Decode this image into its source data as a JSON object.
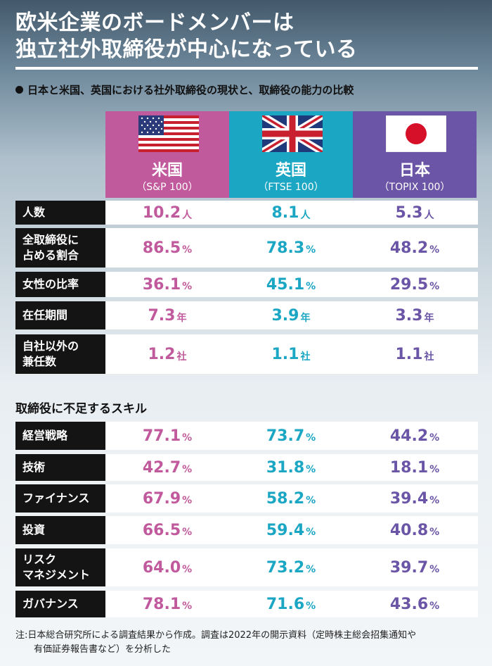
{
  "title": {
    "line1": "欧米企業のボードメンバーは",
    "line2": "独立社外取締役が中心になっている"
  },
  "subtitle": "日本と米国、英国における社外取締役の現状と、取締役の能力の比較",
  "columns": [
    {
      "name": "米国",
      "sub": "（S&P 100）",
      "flag": "us-flag-icon",
      "color": "#c15a9c"
    },
    {
      "name": "英国",
      "sub": "（FTSE 100）",
      "flag": "uk-flag-icon",
      "color": "#1ba7c4"
    },
    {
      "name": "日本",
      "sub": "（TOPIX 100）",
      "flag": "japan-flag-icon",
      "color": "#6a55a6"
    }
  ],
  "status_rows": [
    {
      "label": [
        "人数"
      ],
      "values": [
        "10.2",
        "8.1",
        "5.3"
      ],
      "unit": "人"
    },
    {
      "label": [
        "全取締役に",
        "占める割合"
      ],
      "values": [
        "86.5",
        "78.3",
        "48.2"
      ],
      "unit": "%"
    },
    {
      "label": [
        "女性の比率"
      ],
      "values": [
        "36.1",
        "45.1",
        "29.5"
      ],
      "unit": "%"
    },
    {
      "label": [
        "在任期間"
      ],
      "values": [
        "7.3",
        "3.9",
        "3.3"
      ],
      "unit": "年"
    },
    {
      "label": [
        "自社以外の",
        "兼任数"
      ],
      "values": [
        "1.2",
        "1.1",
        "1.1"
      ],
      "unit": "社"
    }
  ],
  "skills_heading": "取締役に不足するスキル",
  "skill_rows": [
    {
      "label": [
        "経営戦略"
      ],
      "values": [
        "77.1",
        "73.7",
        "44.2"
      ],
      "unit": "%"
    },
    {
      "label": [
        "技術"
      ],
      "values": [
        "42.7",
        "31.8",
        "18.1"
      ],
      "unit": "%"
    },
    {
      "label": [
        "ファイナンス"
      ],
      "values": [
        "67.9",
        "58.2",
        "39.4"
      ],
      "unit": "%"
    },
    {
      "label": [
        "投資"
      ],
      "values": [
        "66.5",
        "59.4",
        "40.8"
      ],
      "unit": "%"
    },
    {
      "label": [
        "リスク",
        "マネジメント"
      ],
      "values": [
        "64.0",
        "73.2",
        "39.7"
      ],
      "unit": "%"
    },
    {
      "label": [
        "ガバナンス"
      ],
      "values": [
        "78.1",
        "71.6",
        "43.6"
      ],
      "unit": "%"
    }
  ],
  "footnote": {
    "line1": "注:日本総合研究所による調査結果から作成。調査は2022年の開示資料（定時株主総会招集通知や",
    "line2": "有価証券報告書など）を分析した"
  }
}
